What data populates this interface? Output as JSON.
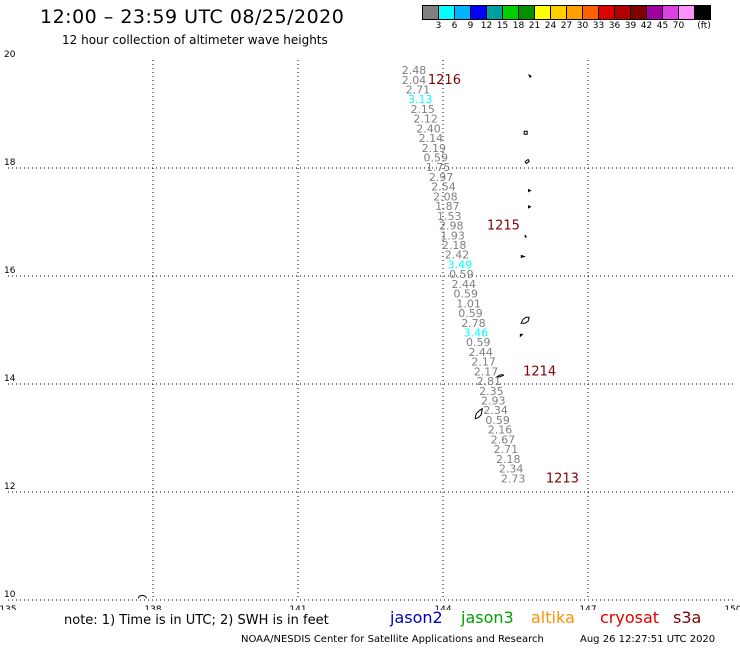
{
  "header": {
    "title": "12:00 – 23:59 UTC 08/25/2020",
    "subtitle": "12 hour collection of altimeter wave heights"
  },
  "color_scale": {
    "unit_label": "(ft)",
    "colors": [
      "#808080",
      "#00ffff",
      "#00b4ff",
      "#0000ff",
      "#00a0a0",
      "#00d000",
      "#009000",
      "#ffff00",
      "#ffd000",
      "#ffa000",
      "#ff6000",
      "#e00000",
      "#b00000",
      "#800000",
      "#a000a0",
      "#e040e0",
      "#ff90ff",
      "#000000"
    ],
    "ticks": [
      "3",
      "6",
      "9",
      "12",
      "15",
      "18",
      "21",
      "24",
      "27",
      "30",
      "33",
      "36",
      "39",
      "42",
      "45",
      "70"
    ]
  },
  "map": {
    "lon_range": [
      135,
      150
    ],
    "lat_range": [
      10,
      20
    ],
    "lon_ticks": [
      "135",
      "138",
      "141",
      "144",
      "147",
      "150"
    ],
    "lat_ticks": [
      "20",
      "18",
      "16",
      "14",
      "12",
      "10"
    ],
    "lon_tick_values": [
      135,
      138,
      141,
      144,
      147,
      150
    ],
    "lat_tick_values": [
      20,
      18,
      16,
      14,
      12,
      10
    ],
    "grid": true
  },
  "track": {
    "points": [
      {
        "lon": 143.4,
        "lat": 19.74,
        "v": "2.48",
        "c": "#808080"
      },
      {
        "lon": 143.4,
        "lat": 19.56,
        "v": "2.04",
        "c": "#808080"
      },
      {
        "lon": 143.48,
        "lat": 19.38,
        "v": "2.71",
        "c": "#808080"
      },
      {
        "lon": 143.53,
        "lat": 19.2,
        "v": "3.13",
        "c": "#00ffff"
      },
      {
        "lon": 143.58,
        "lat": 19.02,
        "v": "2.15",
        "c": "#808080"
      },
      {
        "lon": 143.64,
        "lat": 18.84,
        "v": "2.12",
        "c": "#808080"
      },
      {
        "lon": 143.7,
        "lat": 18.66,
        "v": "2.40",
        "c": "#808080"
      },
      {
        "lon": 143.75,
        "lat": 18.48,
        "v": "2.14",
        "c": "#808080"
      },
      {
        "lon": 143.81,
        "lat": 18.3,
        "v": "2.19",
        "c": "#808080"
      },
      {
        "lon": 143.85,
        "lat": 18.12,
        "v": "0.59",
        "c": "#808080"
      },
      {
        "lon": 143.9,
        "lat": 17.94,
        "v": "1.75",
        "c": "#808080"
      },
      {
        "lon": 143.96,
        "lat": 17.76,
        "v": "2.97",
        "c": "#808080"
      },
      {
        "lon": 144.01,
        "lat": 17.58,
        "v": "2.54",
        "c": "#808080"
      },
      {
        "lon": 144.05,
        "lat": 17.4,
        "v": "2.08",
        "c": "#808080"
      },
      {
        "lon": 144.09,
        "lat": 17.22,
        "v": "1.87",
        "c": "#808080"
      },
      {
        "lon": 144.13,
        "lat": 17.04,
        "v": "1.53",
        "c": "#808080"
      },
      {
        "lon": 144.17,
        "lat": 16.86,
        "v": "2.98",
        "c": "#808080"
      },
      {
        "lon": 144.2,
        "lat": 16.68,
        "v": "1.93",
        "c": "#808080"
      },
      {
        "lon": 144.23,
        "lat": 16.5,
        "v": "2.18",
        "c": "#808080"
      },
      {
        "lon": 144.29,
        "lat": 16.32,
        "v": "2.42",
        "c": "#808080"
      },
      {
        "lon": 144.35,
        "lat": 16.14,
        "v": "3.49",
        "c": "#00ffff"
      },
      {
        "lon": 144.38,
        "lat": 15.96,
        "v": "0.59",
        "c": "#808080"
      },
      {
        "lon": 144.43,
        "lat": 15.78,
        "v": "2.44",
        "c": "#808080"
      },
      {
        "lon": 144.47,
        "lat": 15.6,
        "v": "0.59",
        "c": "#808080"
      },
      {
        "lon": 144.53,
        "lat": 15.42,
        "v": "1.01",
        "c": "#808080"
      },
      {
        "lon": 144.57,
        "lat": 15.24,
        "v": "0.59",
        "c": "#808080"
      },
      {
        "lon": 144.63,
        "lat": 15.06,
        "v": "2.78",
        "c": "#808080"
      },
      {
        "lon": 144.68,
        "lat": 14.88,
        "v": "3.46",
        "c": "#00ffff"
      },
      {
        "lon": 144.73,
        "lat": 14.7,
        "v": "0.59",
        "c": "#808080"
      },
      {
        "lon": 144.78,
        "lat": 14.52,
        "v": "2.44",
        "c": "#808080"
      },
      {
        "lon": 144.84,
        "lat": 14.34,
        "v": "2.17",
        "c": "#808080"
      },
      {
        "lon": 144.89,
        "lat": 14.16,
        "v": "2.17",
        "c": "#808080"
      },
      {
        "lon": 144.95,
        "lat": 13.98,
        "v": "2.81",
        "c": "#808080"
      },
      {
        "lon": 145.0,
        "lat": 13.8,
        "v": "2.35",
        "c": "#808080"
      },
      {
        "lon": 145.04,
        "lat": 13.62,
        "v": "2.93",
        "c": "#808080"
      },
      {
        "lon": 145.09,
        "lat": 13.44,
        "v": "2.34",
        "c": "#808080"
      },
      {
        "lon": 145.13,
        "lat": 13.26,
        "v": "0.59",
        "c": "#808080"
      },
      {
        "lon": 145.18,
        "lat": 13.08,
        "v": "2.16",
        "c": "#808080"
      },
      {
        "lon": 145.24,
        "lat": 12.9,
        "v": "2.67",
        "c": "#808080"
      },
      {
        "lon": 145.3,
        "lat": 12.72,
        "v": "2.71",
        "c": "#808080"
      },
      {
        "lon": 145.35,
        "lat": 12.54,
        "v": "2.18",
        "c": "#808080"
      },
      {
        "lon": 145.41,
        "lat": 12.36,
        "v": "2.34",
        "c": "#808080"
      },
      {
        "lon": 145.45,
        "lat": 12.18,
        "v": "2.73",
        "c": "#808080"
      }
    ],
    "time_labels": [
      {
        "lon": 144.03,
        "lat": 19.56,
        "text": "1216",
        "c": "#800000"
      },
      {
        "lon": 145.25,
        "lat": 16.86,
        "text": "1215",
        "c": "#800000"
      },
      {
        "lon": 146.0,
        "lat": 14.16,
        "text": "1214",
        "c": "#800000"
      },
      {
        "lon": 146.47,
        "lat": 12.18,
        "text": "1213",
        "c": "#800000"
      }
    ]
  },
  "legend": {
    "note": "note: 1) Time is in UTC; 2) SWH is in feet",
    "satellites": [
      {
        "name": "jason2",
        "color": "#0000c0"
      },
      {
        "name": "jason3",
        "color": "#00a000"
      },
      {
        "name": "altika",
        "color": "#ff9000"
      },
      {
        "name": "cryosat",
        "color": "#e00000"
      },
      {
        "name": "s3a",
        "color": "#800000"
      }
    ]
  },
  "footer": {
    "credit": "NOAA/NESDIS Center for Satellite Applications and Research",
    "timestamp": "Aug 26 12:27:51 UTC 2020"
  }
}
